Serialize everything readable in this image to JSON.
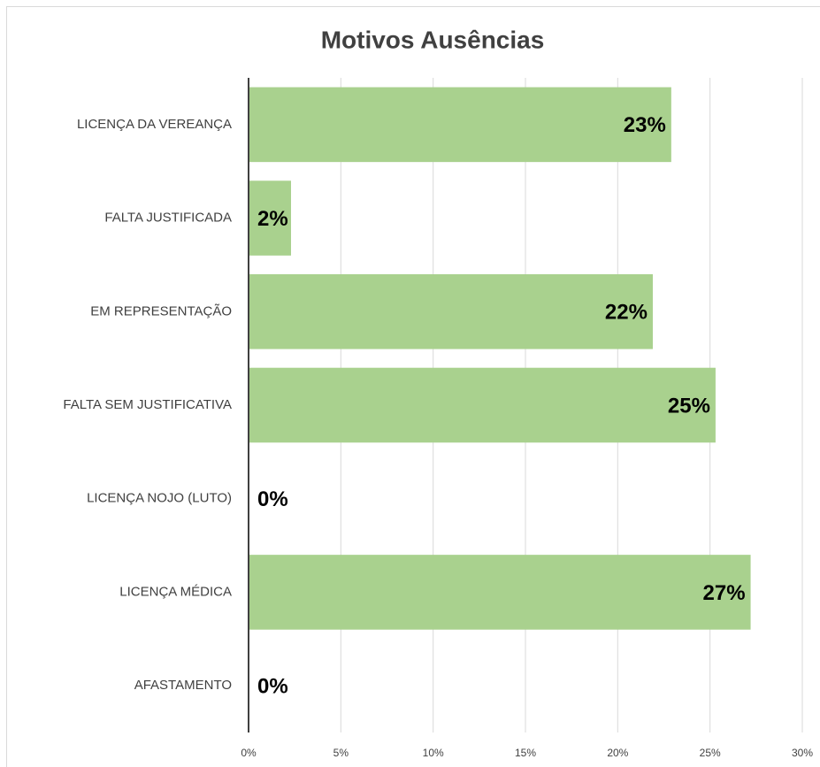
{
  "chart_data": {
    "type": "barh",
    "title": "Motivos Ausências",
    "categories": [
      "LICENÇA DA VEREANÇA",
      "FALTA JUSTIFICADA",
      "EM REPRESENTAÇÃO",
      "FALTA SEM JUSTIFICATIVA",
      "LICENÇA NOJO (LUTO)",
      "LICENÇA MÉDICA",
      "AFASTAMENTO"
    ],
    "values": [
      22.9,
      2.3,
      21.9,
      25.3,
      0,
      27.2,
      0
    ],
    "value_labels": [
      "23%",
      "2%",
      "22%",
      "25%",
      "0%",
      "27%",
      "0%"
    ],
    "color": "#a9d18e",
    "xlim": [
      0,
      30
    ],
    "xticks": [
      {
        "value": 0,
        "label": "0%"
      },
      {
        "value": 5,
        "label": "5%"
      },
      {
        "value": 10,
        "label": "10%"
      },
      {
        "value": 15,
        "label": "15%"
      },
      {
        "value": 20,
        "label": "20%"
      },
      {
        "value": 25,
        "label": "25%"
      },
      {
        "value": 30,
        "label": "30%"
      }
    ],
    "grid": true
  }
}
